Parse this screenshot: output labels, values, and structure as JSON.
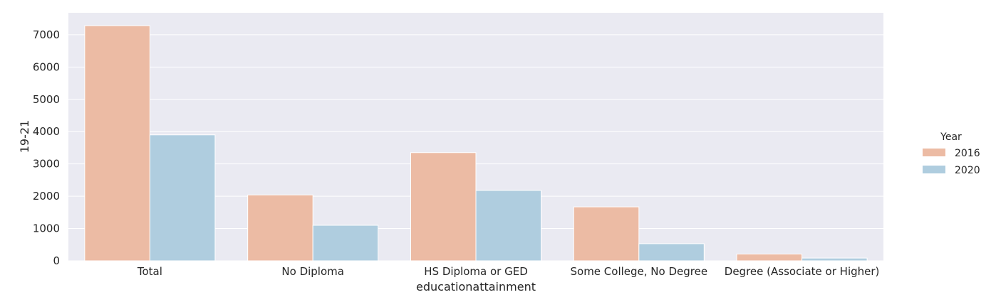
{
  "chart_data": {
    "type": "bar",
    "categories": [
      "Total",
      "No Diploma",
      "HS Diploma or GED",
      "Some College, No Degree",
      "Degree (Associate or Higher)"
    ],
    "series": [
      {
        "name": "2016",
        "values": [
          7280,
          2040,
          3350,
          1670,
          210
        ]
      },
      {
        "name": "2020",
        "values": [
          3900,
          1100,
          2180,
          530,
          85
        ]
      }
    ],
    "xlabel": "educationattainment",
    "ylabel": "19-21",
    "ylim": [
      0,
      7680
    ],
    "yticks": [
      0,
      1000,
      2000,
      3000,
      4000,
      5000,
      6000,
      7000
    ],
    "legend": {
      "title": "Year",
      "position": "right"
    },
    "grid": true,
    "colors": {
      "2016": "#ecbba4",
      "2020": "#afcddf",
      "background": "#eaeaf2",
      "grid": "#ffffff"
    }
  }
}
